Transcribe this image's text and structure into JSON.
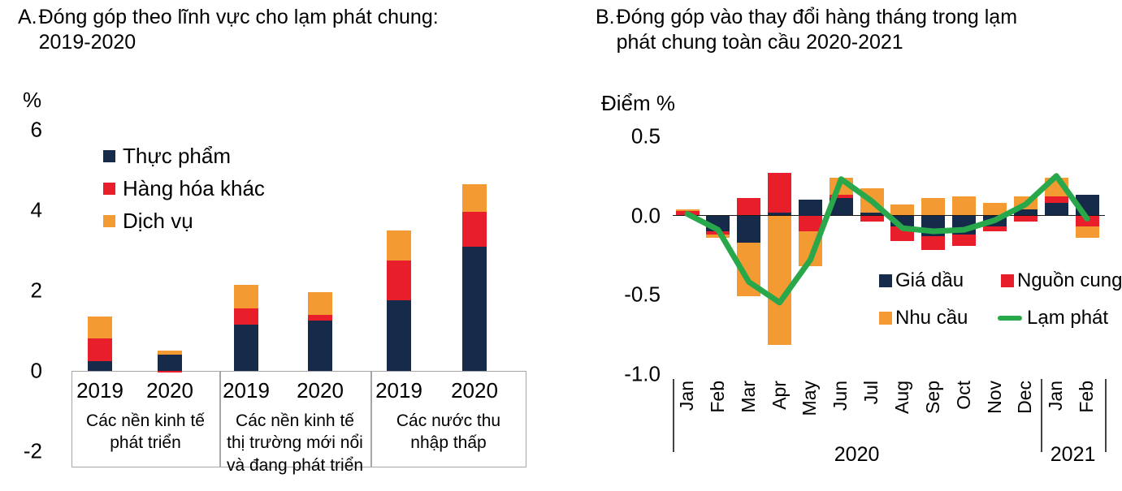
{
  "figure": {
    "background": "#ffffff",
    "colors": {
      "navy": "#152b49",
      "red": "#e81e2b",
      "orange": "#f49a33",
      "green": "#29a84b",
      "axis_gray": "#a6a6a6",
      "axis_dark": "#1a1a1a"
    }
  },
  "panelA": {
    "letter": "A.",
    "title_lines": [
      "Đóng góp theo lĩnh vực cho lạm phát chung:",
      "2019-2020"
    ],
    "unit": "%",
    "y_tick_labels": [
      "6",
      "4",
      "2",
      "0",
      "-2"
    ],
    "y_tick_values": [
      6,
      4,
      2,
      0,
      -2
    ],
    "legend": [
      {
        "label": "Thực phẩm",
        "color": "navy"
      },
      {
        "label": "Hàng hóa khác",
        "color": "red"
      },
      {
        "label": "Dịch vụ",
        "color": "orange"
      }
    ],
    "chart_data": {
      "type": "bar",
      "stacked": true,
      "ylabel": "%",
      "ylim": [
        -2,
        6
      ],
      "series_order": [
        "Thực phẩm",
        "Hàng hóa khác",
        "Dịch vụ"
      ],
      "series_colors": {
        "Thực phẩm": "navy",
        "Hàng hóa khác": "red",
        "Dịch vụ": "orange"
      },
      "groups": [
        {
          "label_lines": [
            "Các nền kinh tế",
            "phát triển"
          ],
          "bars": [
            {
              "year": "2019",
              "values": {
                "Thực phẩm": 0.25,
                "Hàng hóa khác": 0.55,
                "Dịch vụ": 0.55
              }
            },
            {
              "year": "2020",
              "values": {
                "Thực phẩm": 0.4,
                "Hàng hóa khác": -0.05,
                "Dịch vụ": 0.1
              }
            }
          ]
        },
        {
          "label_lines": [
            "Các nền kinh tế",
            "thị trường mới nổi",
            "và đang phát triển"
          ],
          "bars": [
            {
              "year": "2019",
              "values": {
                "Thực phẩm": 1.15,
                "Hàng hóa khác": 0.4,
                "Dịch vụ": 0.6
              }
            },
            {
              "year": "2020",
              "values": {
                "Thực phẩm": 1.25,
                "Hàng hóa khác": 0.15,
                "Dịch vụ": 0.55
              }
            }
          ]
        },
        {
          "label_lines": [
            "Các nước thu",
            "nhập thấp"
          ],
          "bars": [
            {
              "year": "2019",
              "values": {
                "Thực phẩm": 1.75,
                "Hàng hóa khác": 1.0,
                "Dịch vụ": 0.75
              }
            },
            {
              "year": "2020",
              "values": {
                "Thực phẩm": 3.1,
                "Hàng hóa khác": 0.85,
                "Dịch vụ": 0.7
              }
            }
          ]
        }
      ]
    }
  },
  "panelB": {
    "letter": "B.",
    "title_lines": [
      "Đóng góp vào thay đổi hàng tháng trong lạm",
      "phát chung toàn cầu 2020-2021"
    ],
    "unit": "Điểm %",
    "y_tick_labels": [
      "0.5",
      "0.0",
      "-0.5",
      "-1.0"
    ],
    "y_tick_values": [
      0.5,
      0.0,
      -0.5,
      -1.0
    ],
    "legend": [
      {
        "label": "Giá dầu",
        "color": "navy",
        "shape": "square"
      },
      {
        "label": "Nguồn cung",
        "color": "red",
        "shape": "square"
      },
      {
        "label": "Nhu cầu",
        "color": "orange",
        "shape": "square"
      },
      {
        "label": "Lạm phát",
        "color": "green",
        "shape": "line"
      }
    ],
    "chart_data": {
      "type": "bar+line",
      "stacked": true,
      "ylabel": "Điểm %",
      "ylim": [
        -1.0,
        0.5
      ],
      "categories": [
        "Jan",
        "Feb",
        "Mar",
        "Apr",
        "May",
        "Jun",
        "Jul",
        "Aug",
        "Sep",
        "Oct",
        "Nov",
        "Dec",
        "Jan",
        "Feb"
      ],
      "year_groups": [
        {
          "label": "2020",
          "months": 12
        },
        {
          "label": "2021",
          "months": 2
        }
      ],
      "series": [
        {
          "name": "Giá dầu",
          "type": "bar",
          "color": "navy",
          "values": [
            0,
            -0.1,
            -0.17,
            0.02,
            0.1,
            0.11,
            0.02,
            -0.07,
            -0.13,
            -0.12,
            -0.07,
            0.04,
            0.08,
            0.13
          ]
        },
        {
          "name": "Nguồn cung",
          "type": "bar",
          "color": "red",
          "values": [
            0.03,
            -0.02,
            0.11,
            0.25,
            -0.1,
            0.02,
            -0.04,
            -0.09,
            -0.09,
            -0.07,
            -0.03,
            -0.04,
            0.04,
            -0.07
          ]
        },
        {
          "name": "Nhu cầu",
          "type": "bar",
          "color": "orange",
          "values": [
            0.01,
            -0.02,
            -0.34,
            -0.82,
            -0.22,
            0.11,
            0.15,
            0.07,
            0.11,
            0.12,
            0.08,
            0.08,
            0.12,
            -0.07
          ]
        },
        {
          "name": "Lạm phát",
          "type": "line",
          "color": "green",
          "values": [
            0.01,
            -0.09,
            -0.42,
            -0.55,
            -0.28,
            0.23,
            0.09,
            -0.08,
            -0.1,
            -0.09,
            -0.03,
            0.07,
            0.25,
            -0.02
          ]
        }
      ]
    }
  }
}
